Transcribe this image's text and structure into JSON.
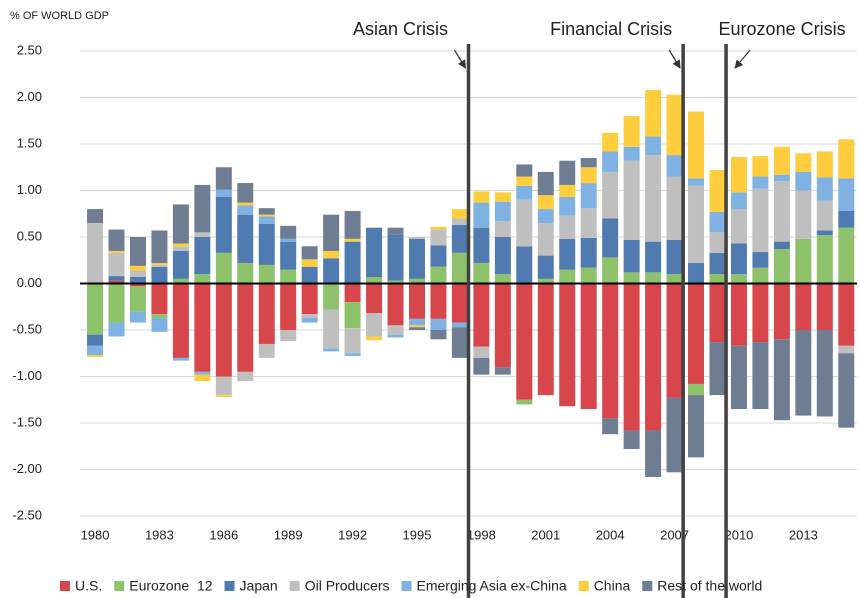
{
  "chart_data": {
    "type": "bar",
    "stacked": true,
    "y_label": "% OF WORLD GDP",
    "x": [
      1980,
      1981,
      1982,
      1983,
      1984,
      1985,
      1986,
      1987,
      1988,
      1989,
      1990,
      1991,
      1992,
      1993,
      1994,
      1995,
      1996,
      1997,
      1998,
      1999,
      2000,
      2001,
      2002,
      2003,
      2004,
      2005,
      2006,
      2007,
      2008,
      2009,
      2010,
      2011,
      2012,
      2013,
      2014,
      2015
    ],
    "xlim": [
      1979.3,
      2015.5
    ],
    "xticks": [
      1980,
      1983,
      1986,
      1989,
      1992,
      1995,
      1998,
      2001,
      2004,
      2007,
      2010,
      2013
    ],
    "ylim": [
      -2.5,
      2.5
    ],
    "yticks": [
      {
        "value": -2.5,
        "label": "-2.50"
      },
      {
        "value": -2,
        "label": "-2.00"
      },
      {
        "value": -1.5,
        "label": "-1.50"
      },
      {
        "value": -1,
        "label": "-1.00"
      },
      {
        "value": -0.5,
        "label": "-0.50"
      },
      {
        "value": 0,
        "label": "0.00"
      },
      {
        "value": 0.5,
        "label": "0.50"
      },
      {
        "value": 1,
        "label": "1.00"
      },
      {
        "value": 1.5,
        "label": "1.50"
      },
      {
        "value": 2,
        "label": "2.00"
      },
      {
        "value": 2.5,
        "label": "2.50"
      }
    ],
    "grid": true,
    "legend": "bottom",
    "series": [
      {
        "name": "U.S.",
        "color": "#d6464a",
        "values": [
          0,
          0.03,
          -0.03,
          -0.33,
          -0.8,
          -0.95,
          -1.0,
          -0.95,
          -0.65,
          -0.5,
          -0.33,
          0,
          -0.2,
          -0.32,
          -0.45,
          -0.38,
          -0.38,
          -0.42,
          -0.68,
          -0.9,
          -1.25,
          -1.2,
          -1.32,
          -1.35,
          -1.45,
          -1.58,
          -1.58,
          -1.23,
          -1.08,
          -0.63,
          -0.67,
          -0.63,
          -0.6,
          -0.5,
          -0.5,
          -0.67
        ]
      },
      {
        "name": "Eurozone  12",
        "color": "#8dc26b",
        "values": [
          -0.55,
          -0.42,
          -0.27,
          -0.04,
          0.05,
          0.1,
          0.33,
          0.22,
          0.2,
          0.15,
          0,
          -0.28,
          -0.28,
          0.07,
          0.03,
          0.05,
          0.18,
          0.33,
          0.22,
          0.1,
          -0.05,
          0.05,
          0.15,
          0.17,
          0.28,
          0.12,
          0.12,
          0.1,
          -0.12,
          0.1,
          0.1,
          0.17,
          0.37,
          0.48,
          0.52,
          0.6
        ]
      },
      {
        "name": "Japan",
        "color": "#4f7bb0",
        "values": [
          -0.12,
          0.05,
          0.07,
          0.18,
          0.3,
          0.4,
          0.6,
          0.52,
          0.44,
          0.3,
          0.18,
          0.27,
          0.45,
          0.53,
          0.5,
          0.43,
          0.23,
          0.3,
          0.38,
          0.4,
          0.4,
          0.25,
          0.33,
          0.32,
          0.42,
          0.35,
          0.33,
          0.37,
          0.22,
          0.23,
          0.33,
          0.17,
          0.08,
          0,
          0.05,
          0.18
        ]
      },
      {
        "name": "Oil Producers",
        "color": "#bfbfbf",
        "values": [
          0.65,
          0.25,
          0.07,
          0.02,
          0.05,
          0.05,
          -0.2,
          -0.1,
          -0.15,
          -0.12,
          -0.04,
          -0.42,
          -0.27,
          -0.25,
          -0.1,
          0.02,
          0.17,
          0.07,
          -0.12,
          0.17,
          0.5,
          0.35,
          0.25,
          0.32,
          0.5,
          0.85,
          0.93,
          0.68,
          0.83,
          0.22,
          0.37,
          0.68,
          0.65,
          0.52,
          0.32,
          -0.08
        ]
      },
      {
        "name": "Emerging Asia ex-China",
        "color": "#7fb2e3",
        "values": [
          -0.1,
          -0.15,
          -0.12,
          -0.15,
          -0.03,
          -0.03,
          0.08,
          0.1,
          0.08,
          0.03,
          -0.05,
          -0.03,
          -0.03,
          0,
          -0.03,
          -0.07,
          -0.12,
          -0.05,
          0.27,
          0.21,
          0.15,
          0.15,
          0.2,
          0.27,
          0.22,
          0.15,
          0.2,
          0.23,
          0.08,
          0.22,
          0.18,
          0.13,
          0.07,
          0.2,
          0.25,
          0.35
        ]
      },
      {
        "name": "China",
        "color": "#fdcd3e",
        "values": [
          -0.02,
          0.02,
          0.05,
          0.02,
          0.03,
          -0.07,
          -0.02,
          0.03,
          0.02,
          0,
          0.08,
          0.08,
          0.03,
          -0.04,
          0,
          -0.02,
          0.03,
          0.1,
          0.12,
          0.1,
          0.1,
          0.15,
          0.13,
          0.17,
          0.2,
          0.33,
          0.5,
          0.65,
          0.72,
          0.45,
          0.38,
          0.22,
          0.3,
          0.2,
          0.28,
          0.42
        ]
      },
      {
        "name": "Rest of the world",
        "color": "#6e7d92",
        "values": [
          0.15,
          0.23,
          0.31,
          0.35,
          0.42,
          0.51,
          0.24,
          0.21,
          0.07,
          0.14,
          0.14,
          0.39,
          0.3,
          0,
          0.07,
          -0.03,
          -0.1,
          -0.33,
          -0.18,
          -0.08,
          0.13,
          0.25,
          0.26,
          0.1,
          -0.17,
          -0.2,
          -0.5,
          -0.8,
          -0.67,
          -0.57,
          -0.68,
          -0.72,
          -0.87,
          -0.92,
          -0.93,
          -0.8
        ]
      }
    ],
    "annotations": [
      {
        "text": "Asian Crisis",
        "x": 1997.4
      },
      {
        "text": "Financial Crisis",
        "x": 2007.4
      },
      {
        "text": "Eurozone Crisis",
        "x": 2009.4
      }
    ]
  }
}
